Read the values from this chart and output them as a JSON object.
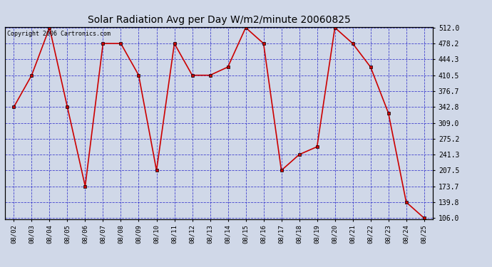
{
  "title": "Solar Radiation Avg per Day W/m2/minute 20060825",
  "copyright": "Copyright 2006 Cartronics.com",
  "dates": [
    "08/02",
    "08/03",
    "08/04",
    "08/05",
    "08/06",
    "08/07",
    "08/08",
    "08/09",
    "08/10",
    "08/11",
    "08/12",
    "08/13",
    "08/14",
    "08/15",
    "08/16",
    "08/17",
    "08/18",
    "08/19",
    "08/20",
    "08/21",
    "08/22",
    "08/23",
    "08/24",
    "08/25"
  ],
  "values": [
    342.8,
    410.5,
    512.0,
    342.8,
    173.7,
    478.2,
    478.2,
    410.5,
    207.5,
    478.2,
    410.5,
    410.5,
    428.0,
    512.0,
    478.2,
    207.5,
    241.3,
    258.0,
    512.0,
    478.2,
    428.0,
    330.0,
    139.8,
    106.0
  ],
  "line_color": "#cc0000",
  "marker_color": "#cc0000",
  "bg_color": "#d0d8e8",
  "plot_bg_color": "#d0d8e8",
  "grid_color": "#3333cc",
  "border_color": "#000000",
  "title_color": "#000000",
  "text_color": "#000000",
  "yticks": [
    106.0,
    139.8,
    173.7,
    207.5,
    241.3,
    275.2,
    309.0,
    342.8,
    376.7,
    410.5,
    444.3,
    478.2,
    512.0
  ],
  "ytick_labels": [
    "106.0",
    "139.8",
    "173.7",
    "207.5",
    "241.3",
    "275.2",
    "309.0",
    "342.8",
    "376.7",
    "410.5",
    "444.3",
    "478.2",
    "512.0"
  ],
  "ymin": 106.0,
  "ymax": 512.0
}
